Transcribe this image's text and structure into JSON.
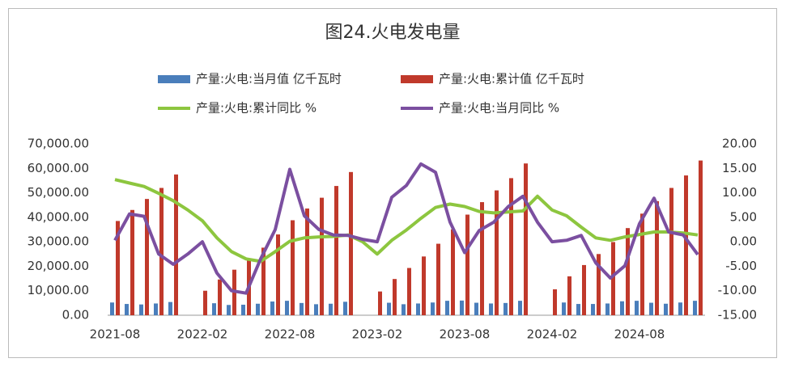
{
  "chart_data": {
    "type": "bar-line",
    "title": "图24.火电发电量",
    "categories": [
      "2021-08",
      null,
      null,
      null,
      null,
      null,
      "2022-02",
      null,
      null,
      null,
      null,
      null,
      "2022-08",
      null,
      null,
      null,
      null,
      null,
      "2023-02",
      null,
      null,
      null,
      null,
      null,
      "2023-08",
      null,
      null,
      null,
      null,
      null,
      "2024-02",
      null,
      null,
      null,
      null,
      null,
      "2024-08",
      null,
      null,
      null,
      null
    ],
    "series": [
      {
        "name": "产量:火电:当月值 亿千瓦时",
        "color": "#4a7ebb",
        "kind": "bar",
        "axis": "y",
        "values": [
          5200,
          4600,
          4400,
          4800,
          5400,
          null,
          null,
          4900,
          4200,
          4300,
          4700,
          5600,
          5900,
          5000,
          4500,
          4700,
          5500,
          null,
          null,
          5100,
          4500,
          4800,
          5200,
          5900,
          6000,
          5100,
          4800,
          5000,
          5900,
          null,
          null,
          5200,
          4600,
          4600,
          4800,
          5700,
          5900,
          5100,
          4700,
          5200,
          5900
        ]
      },
      {
        "name": "产量:火电:累计值 亿千瓦时",
        "color": "#c0392b",
        "kind": "bar",
        "axis": "y",
        "values": [
          38500,
          43000,
          47500,
          52000,
          57500,
          null,
          10000,
          14600,
          18600,
          22800,
          27600,
          33000,
          38800,
          43600,
          48000,
          52800,
          58500,
          null,
          9700,
          14800,
          19300,
          24000,
          29200,
          35100,
          41100,
          46200,
          51000,
          56000,
          62000,
          null,
          10600,
          15900,
          20500,
          25000,
          29900,
          35600,
          41500,
          46600,
          52000,
          57100,
          63200
        ]
      },
      {
        "name": "产量:火电:累计同比 %",
        "color": "#8dc63f",
        "kind": "line",
        "axis": "y2",
        "values": [
          12.7,
          12.0,
          11.3,
          9.9,
          8.4,
          6.5,
          4.3,
          0.8,
          -2.0,
          -3.5,
          -4.0,
          -2.0,
          0.1,
          0.8,
          1.0,
          1.1,
          1.4,
          0.0,
          -2.5,
          0.3,
          2.4,
          4.8,
          7.0,
          7.7,
          7.2,
          6.2,
          5.9,
          6.1,
          6.3,
          9.3,
          6.5,
          5.3,
          3.0,
          0.8,
          0.3,
          1.0,
          1.5,
          2.0,
          2.0,
          1.8,
          1.4
        ]
      },
      {
        "name": "产量:火电:当月同比 %",
        "color": "#7b4fa0",
        "kind": "line",
        "axis": "y2",
        "values": [
          0.3,
          5.7,
          5.2,
          -2.5,
          -4.6,
          -2.5,
          0.0,
          -6.4,
          -10.0,
          -10.5,
          -3.5,
          2.5,
          14.8,
          5.3,
          2.5,
          1.4,
          1.3,
          0.5,
          0.0,
          9.1,
          11.5,
          15.9,
          14.2,
          4.0,
          -2.2,
          2.3,
          4.0,
          7.2,
          9.3,
          4.0,
          0.0,
          0.3,
          1.3,
          -4.3,
          -7.4,
          -4.9,
          3.7,
          8.9,
          2.0,
          1.4,
          -2.6
        ]
      }
    ],
    "ylim": [
      0,
      70000
    ],
    "yticks": [
      {
        "value": 0,
        "label": "0.00"
      },
      {
        "value": 10000,
        "label": "10,000.00"
      },
      {
        "value": 20000,
        "label": "20,000.00"
      },
      {
        "value": 30000,
        "label": "30,000.00"
      },
      {
        "value": 40000,
        "label": "40,000.00"
      },
      {
        "value": 50000,
        "label": "50,000.00"
      },
      {
        "value": 60000,
        "label": "60,000.00"
      },
      {
        "value": 70000,
        "label": "70,000.00"
      }
    ],
    "y2lim": [
      -15,
      20
    ],
    "y2ticks": [
      {
        "value": -15,
        "label": "-15.00"
      },
      {
        "value": -10,
        "label": "-10.00"
      },
      {
        "value": -5,
        "label": "-5.00"
      },
      {
        "value": 0,
        "label": "0.00"
      },
      {
        "value": 5,
        "label": "5.00"
      },
      {
        "value": 10,
        "label": "10.00"
      },
      {
        "value": 15,
        "label": "15.00"
      },
      {
        "value": 20,
        "label": "20.00"
      }
    ]
  }
}
